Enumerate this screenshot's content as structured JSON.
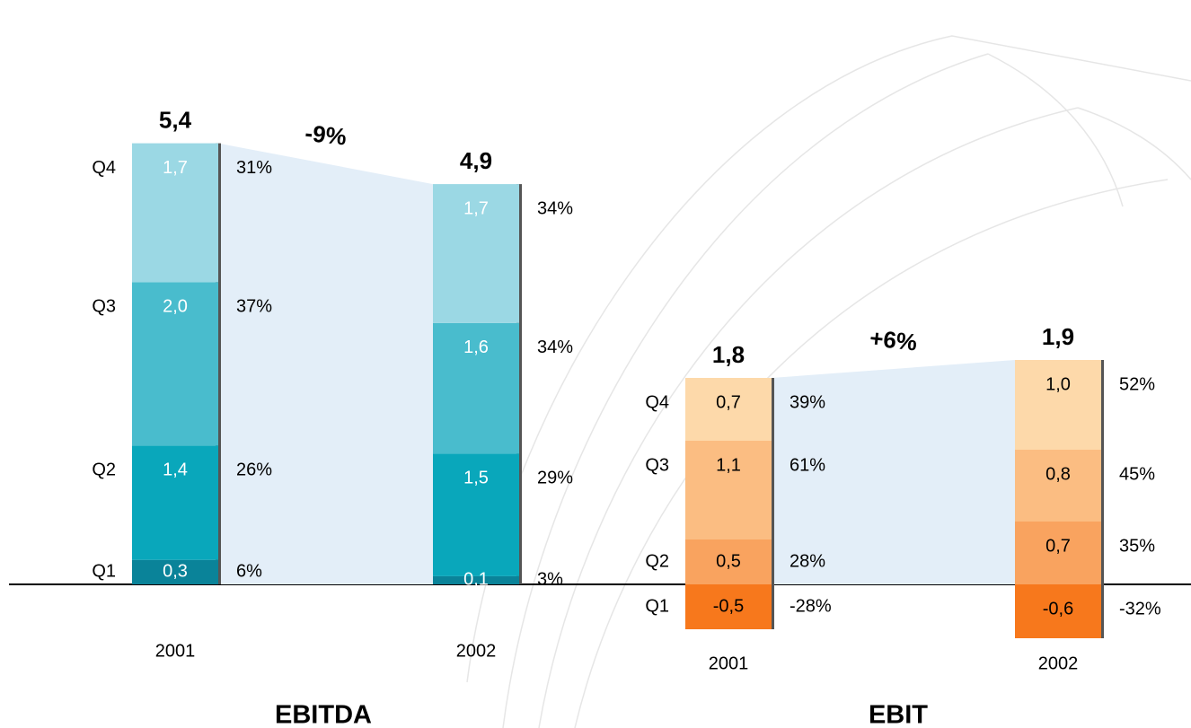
{
  "chart_data": [
    {
      "type": "stacked-bar",
      "title": "EBITDA",
      "categories": [
        "2001",
        "2002"
      ],
      "series": [
        {
          "name": "Q1",
          "color": "#0a8399",
          "values": [
            0.3,
            0.1
          ],
          "value_labels": [
            "0,3",
            "0,1"
          ],
          "share_labels": [
            "6%",
            "3%"
          ]
        },
        {
          "name": "Q2",
          "color": "#09a7bb",
          "values": [
            1.4,
            1.5
          ],
          "value_labels": [
            "1,4",
            "1,5"
          ],
          "share_labels": [
            "26%",
            "29%"
          ]
        },
        {
          "name": "Q3",
          "color": "#49bccd",
          "values": [
            2.0,
            1.6
          ],
          "value_labels": [
            "2,0",
            "1,6"
          ],
          "share_labels": [
            "37%",
            "34%"
          ]
        },
        {
          "name": "Q4",
          "color": "#9bd8e4",
          "values": [
            1.7,
            1.7
          ],
          "value_labels": [
            "1,7",
            "1,7"
          ],
          "share_labels": [
            "31%",
            "34%"
          ]
        }
      ],
      "totals": [
        "5,4",
        "4,9"
      ],
      "change": "-9%",
      "value_text_color": "#ffffff"
    },
    {
      "type": "stacked-bar",
      "title": "EBIT",
      "categories": [
        "2001",
        "2002"
      ],
      "series": [
        {
          "name": "Q1",
          "color": "#f7781c",
          "values": [
            -0.5,
            -0.6
          ],
          "value_labels": [
            "-0,5",
            "-0,6"
          ],
          "share_labels": [
            "-28%",
            "-32%"
          ]
        },
        {
          "name": "Q2",
          "color": "#f9a35f",
          "values": [
            0.5,
            0.7
          ],
          "value_labels": [
            "0,5",
            "0,7"
          ],
          "share_labels": [
            "28%",
            "35%"
          ]
        },
        {
          "name": "Q3",
          "color": "#fbbd82",
          "values": [
            1.1,
            0.8
          ],
          "value_labels": [
            "1,1",
            "0,8"
          ],
          "share_labels": [
            "61%",
            "45%"
          ]
        },
        {
          "name": "Q4",
          "color": "#fdd9aa",
          "values": [
            0.7,
            1.0
          ],
          "value_labels": [
            "0,7",
            "1,0"
          ],
          "share_labels": [
            "39%",
            "52%"
          ]
        }
      ],
      "totals": [
        "1,8",
        "1,9"
      ],
      "change": "+6%",
      "value_text_color": "#000000"
    }
  ]
}
